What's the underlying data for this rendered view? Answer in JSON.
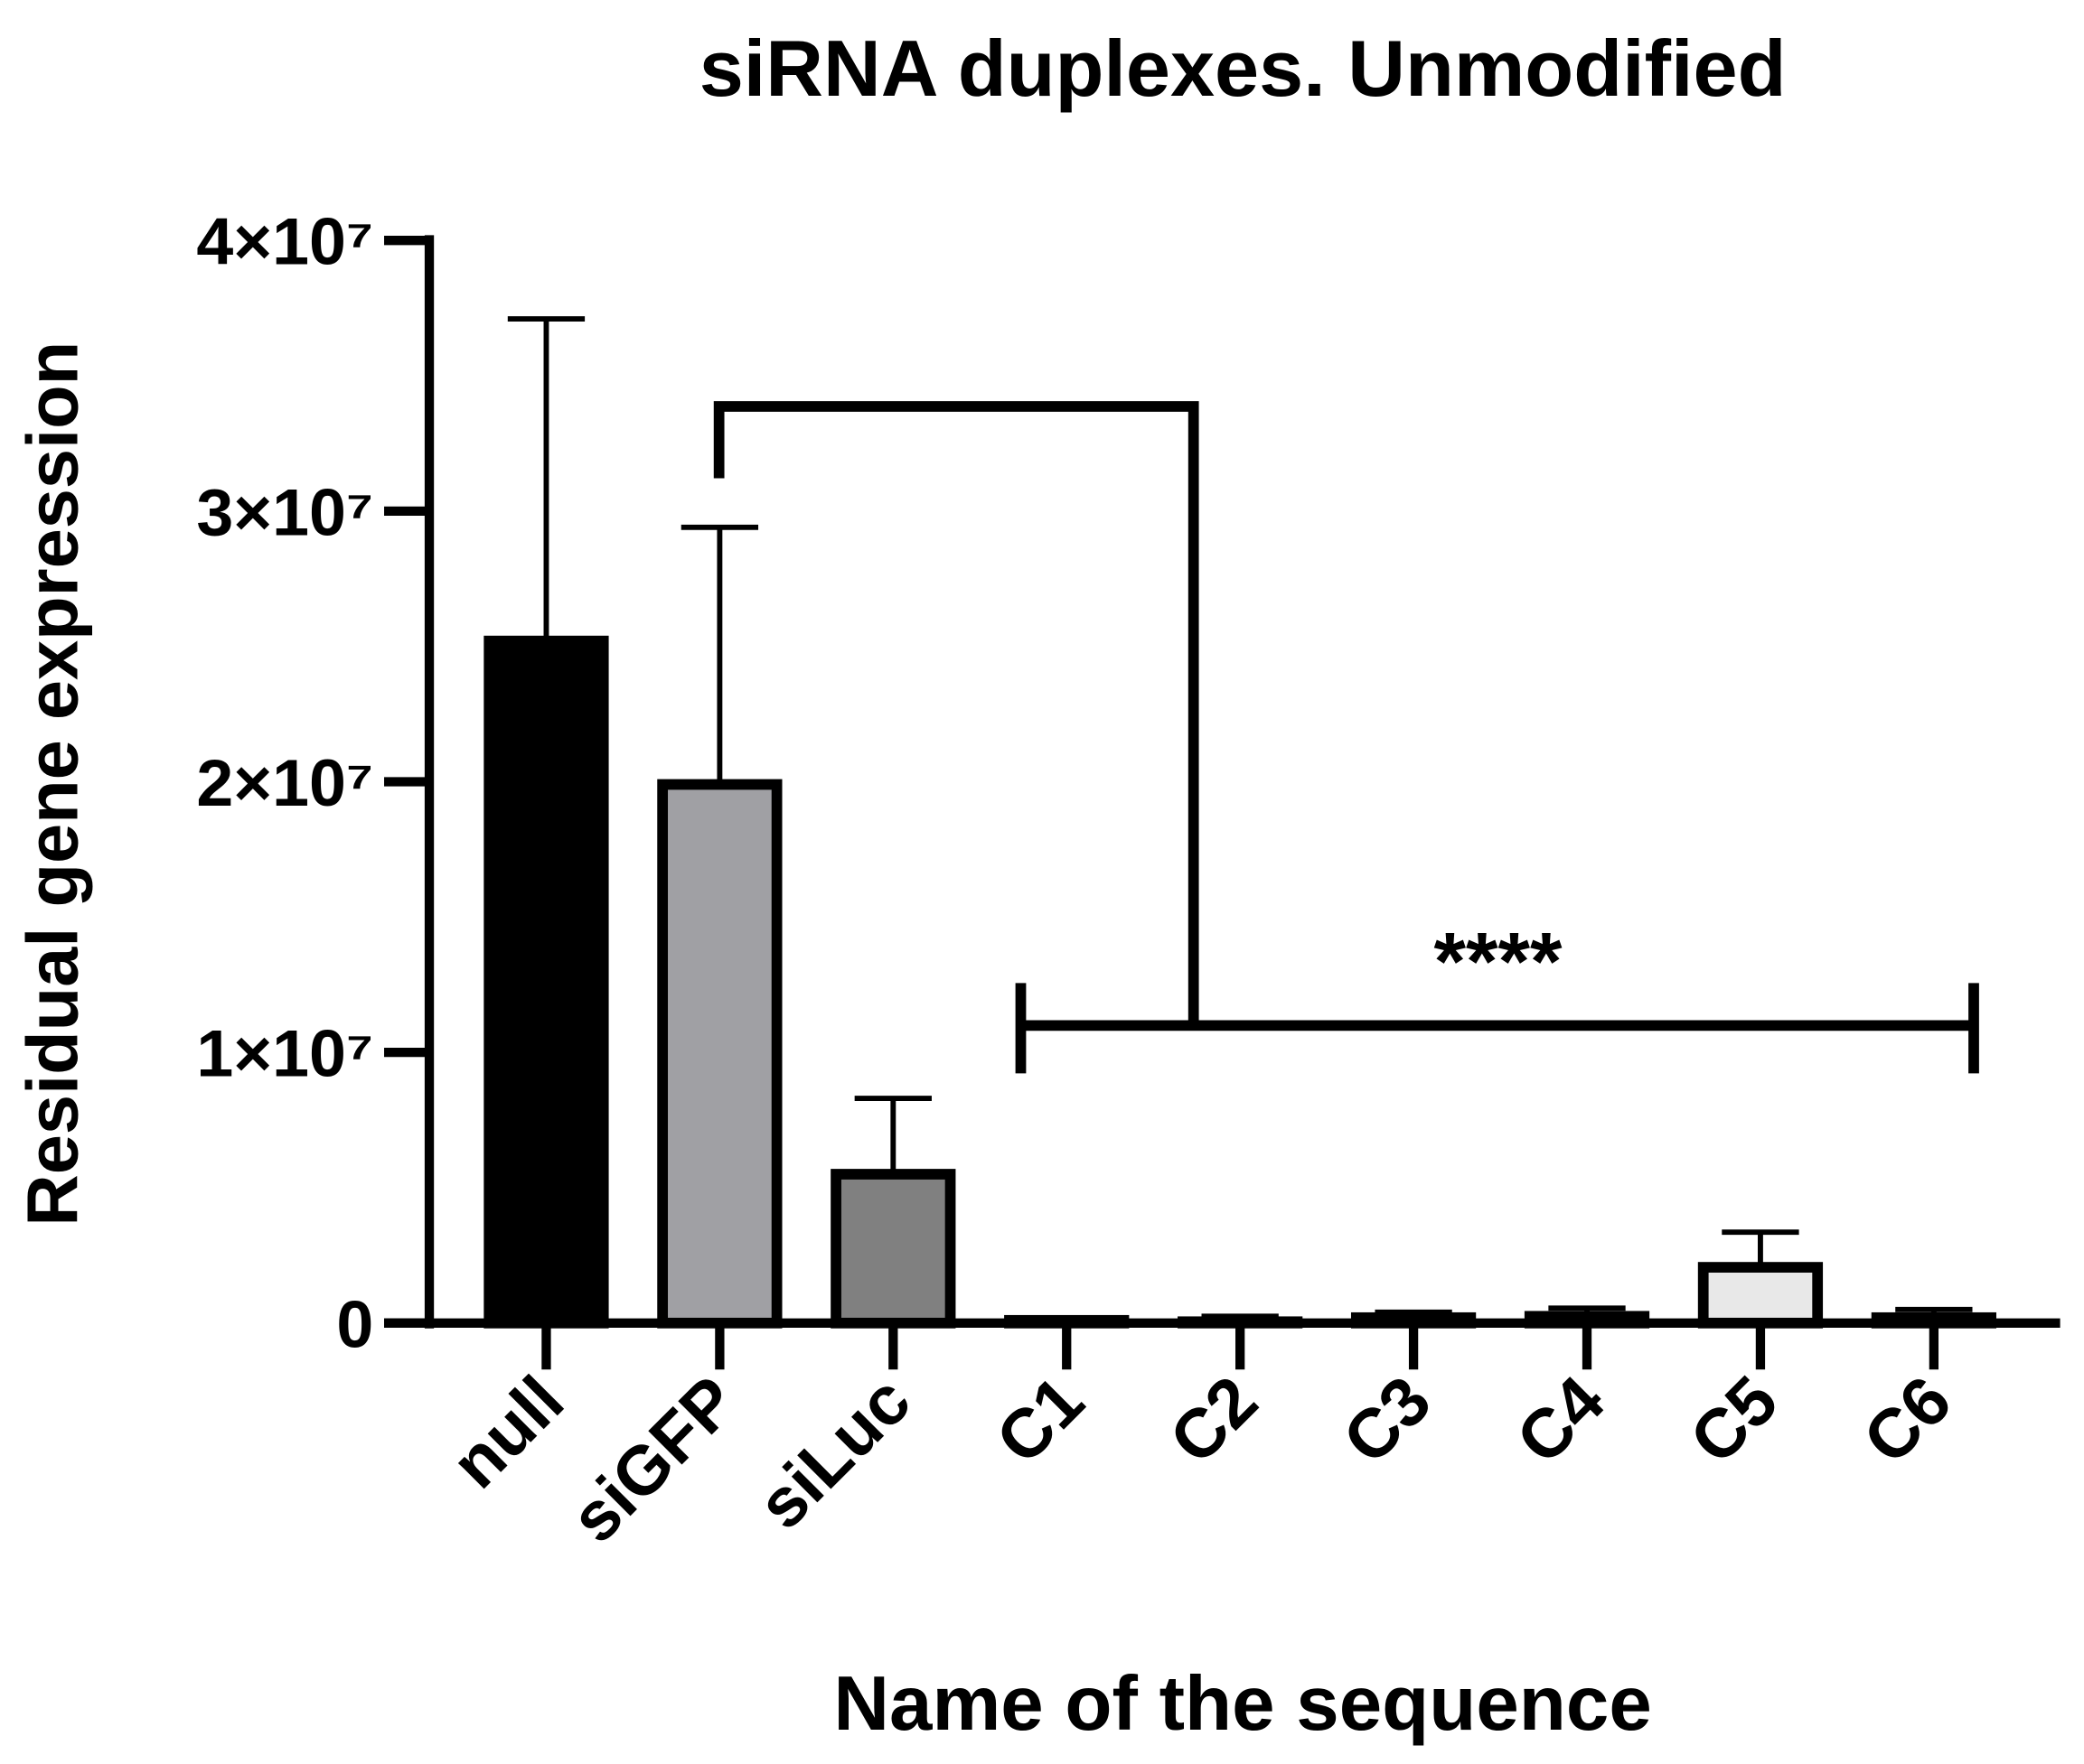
{
  "chart_data": {
    "type": "bar",
    "title": "siRNA duplexes. Unmodified",
    "x_label": "Name of the sequence",
    "y_label": "Residual gene expression",
    "categories": [
      "null",
      "siGFP",
      "siLuc",
      "C1",
      "C2",
      "C3",
      "C4",
      "C5",
      "C6"
    ],
    "values": [
      25200000,
      19900000,
      5500000,
      100000,
      50000,
      200000,
      250000,
      2060000,
      200000
    ],
    "errors": [
      11900000,
      9500000,
      2800000,
      50000,
      200000,
      200000,
      300000,
      1300000,
      300000
    ],
    "colors": [
      "#000000",
      "#a0a0a4",
      "#808080",
      "#ffffff",
      "#ffffff",
      "#ffffff",
      "#ffffff",
      "#e8e8e8",
      "#ffffff"
    ],
    "ylim": [
      0,
      40000000
    ],
    "yticks": [
      0,
      {
        "value": 10000000,
        "label": "1×10⁷"
      },
      {
        "value": 20000000,
        "label": "2×10⁷"
      },
      {
        "value": 30000000,
        "label": "3×10⁷"
      },
      {
        "value": 40000000,
        "label": "4×10⁷"
      }
    ],
    "annotation": "****"
  }
}
